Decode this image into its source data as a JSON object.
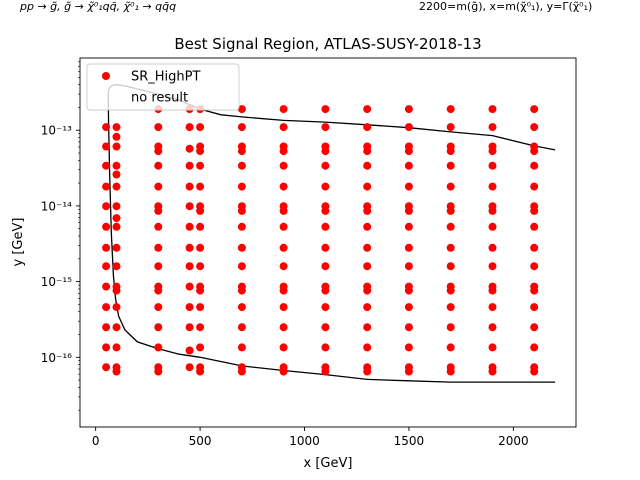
{
  "header": {
    "process_label": "pp → g̃, g̃ → χ̃⁰₁qq̄, χ̃⁰₁ → qq̄q",
    "mass_label": "2200=m(g̃), x=m(χ̃⁰₁), y=Γ(χ̃⁰₁)"
  },
  "chart_data": {
    "type": "scatter",
    "title": "Best Signal Region, ATLAS-SUSY-2018-13",
    "xlabel": "x [GeV]",
    "ylabel": "y [GeV]",
    "xlim": [
      -75,
      2300
    ],
    "ylim": [
      1.2e-17,
      9e-13
    ],
    "yscale": "log",
    "grid": false,
    "legend_placement": "top-left",
    "x_ticks": [
      0,
      500,
      1000,
      1500,
      2000
    ],
    "x_tick_labels": [
      "0",
      "500",
      "1000",
      "1500",
      "2000"
    ],
    "y_ticks": [
      1e-16,
      1e-15,
      1e-14,
      1e-13
    ],
    "y_tick_labels": [
      "10⁻¹⁶",
      "10⁻¹⁵",
      "10⁻¹⁴",
      "10⁻¹³"
    ],
    "series": [
      {
        "name": "SR_HighPT",
        "color": "#ff0000",
        "marker": "circle",
        "columns": [
          {
            "x": 50,
            "y": [
              7.4e-17,
              1.35e-16,
              2.5e-16,
              4.6e-16,
              8.6e-16,
              1.6e-15,
              2.8e-15,
              5.3e-15,
              9.9e-15,
              1.8e-14,
              3.4e-14,
              6.1e-14,
              1.1e-13
            ]
          },
          {
            "x": 100,
            "y": [
              6.5e-17,
              7.4e-17,
              1.35e-16,
              2.5e-16,
              4.6e-16,
              7.6e-16,
              8.6e-16,
              1.6e-15,
              2.8e-15,
              5.3e-15,
              6.9e-15,
              9.9e-15,
              1.8e-14,
              2.6e-14,
              3.4e-14,
              6.1e-14,
              8.2e-14,
              1.1e-13
            ]
          },
          {
            "x": 300,
            "y": [
              6.5e-17,
              7.4e-17,
              1.35e-16,
              2.5e-16,
              4.6e-16,
              7.6e-16,
              8.6e-16,
              1.6e-15,
              2.8e-15,
              5.3e-15,
              8.6e-15,
              9.9e-15,
              1.8e-14,
              3.4e-14,
              5.3e-14,
              6.1e-14,
              1.1e-13,
              1.9e-13
            ]
          },
          {
            "x": 450,
            "y": [
              7.4e-17,
              1.23e-16,
              2.5e-16,
              4.6e-16,
              8.6e-16,
              1.6e-15,
              2.8e-15,
              5.3e-15,
              9.9e-15,
              1.8e-14,
              3.4e-14,
              5.7e-14,
              1.1e-13,
              1.9e-13
            ]
          },
          {
            "x": 500,
            "y": [
              6.5e-17,
              7.4e-17,
              1.35e-16,
              2.5e-16,
              4.6e-16,
              7.6e-16,
              8.6e-16,
              1.6e-15,
              2.8e-15,
              5.3e-15,
              8.6e-15,
              9.9e-15,
              1.8e-14,
              3.4e-14,
              5.3e-14,
              6.1e-14,
              1.1e-13,
              1.9e-13
            ]
          },
          {
            "x": 700,
            "y": [
              6.5e-17,
              7.4e-17,
              1.35e-16,
              2.5e-16,
              4.6e-16,
              7.6e-16,
              8.6e-16,
              1.6e-15,
              2.8e-15,
              5.3e-15,
              8.6e-15,
              9.9e-15,
              1.8e-14,
              3.4e-14,
              5.3e-14,
              6.1e-14,
              1.1e-13,
              1.9e-13
            ]
          },
          {
            "x": 900,
            "y": [
              6.5e-17,
              7.4e-17,
              1.35e-16,
              2.5e-16,
              4.6e-16,
              7.6e-16,
              8.6e-16,
              1.6e-15,
              2.8e-15,
              5.3e-15,
              8.6e-15,
              9.9e-15,
              1.8e-14,
              3.4e-14,
              5.3e-14,
              6.1e-14,
              1.1e-13,
              1.9e-13
            ]
          },
          {
            "x": 1100,
            "y": [
              6.5e-17,
              7.4e-17,
              1.35e-16,
              2.5e-16,
              4.6e-16,
              7.6e-16,
              8.6e-16,
              1.6e-15,
              2.8e-15,
              5.3e-15,
              8.6e-15,
              9.9e-15,
              1.8e-14,
              3.4e-14,
              5.3e-14,
              6.1e-14,
              1.1e-13,
              1.9e-13
            ]
          },
          {
            "x": 1300,
            "y": [
              6.5e-17,
              7.4e-17,
              1.35e-16,
              2.5e-16,
              4.6e-16,
              7.6e-16,
              8.6e-16,
              1.6e-15,
              2.8e-15,
              5.3e-15,
              8.6e-15,
              9.9e-15,
              1.8e-14,
              3.4e-14,
              5.3e-14,
              6.1e-14,
              1.1e-13,
              1.9e-13
            ]
          },
          {
            "x": 1500,
            "y": [
              6.5e-17,
              7.4e-17,
              1.35e-16,
              2.5e-16,
              4.6e-16,
              7.6e-16,
              8.6e-16,
              1.6e-15,
              2.8e-15,
              5.3e-15,
              8.6e-15,
              9.9e-15,
              1.8e-14,
              3.4e-14,
              5.3e-14,
              6.1e-14,
              1.1e-13,
              1.9e-13
            ]
          },
          {
            "x": 1700,
            "y": [
              6.5e-17,
              7.4e-17,
              1.35e-16,
              2.5e-16,
              4.6e-16,
              7.6e-16,
              8.6e-16,
              1.6e-15,
              2.8e-15,
              5.3e-15,
              8.6e-15,
              9.9e-15,
              1.8e-14,
              3.4e-14,
              5.3e-14,
              6.1e-14,
              1.1e-13,
              1.9e-13
            ]
          },
          {
            "x": 1900,
            "y": [
              6.5e-17,
              7.4e-17,
              1.35e-16,
              2.5e-16,
              4.6e-16,
              7.6e-16,
              8.6e-16,
              1.6e-15,
              2.8e-15,
              5.3e-15,
              8.6e-15,
              9.9e-15,
              1.8e-14,
              3.4e-14,
              5.3e-14,
              6.1e-14,
              1.1e-13,
              1.9e-13
            ]
          },
          {
            "x": 2100,
            "y": [
              6.5e-17,
              7.4e-17,
              1.35e-16,
              2.5e-16,
              4.6e-16,
              7.6e-16,
              8.6e-16,
              1.6e-15,
              2.8e-15,
              5.3e-15,
              8.6e-15,
              9.9e-15,
              1.8e-14,
              3.4e-14,
              5.3e-14,
              6.1e-14,
              1.1e-13,
              1.9e-13
            ]
          }
        ]
      },
      {
        "name": "no result",
        "color": "#ffffff",
        "marker": "none",
        "columns": []
      }
    ],
    "contour": {
      "color": "#000000",
      "x": [
        2200,
        2100,
        1900,
        1700,
        1500,
        1300,
        1100,
        900,
        700,
        500,
        400,
        300,
        200,
        140,
        110,
        95,
        85,
        75,
        67,
        62,
        60,
        62,
        68,
        80,
        100,
        150,
        200,
        280,
        400,
        500,
        600,
        700,
        900,
        1100,
        1300,
        1500,
        1700,
        1900,
        2100,
        2200
      ],
      "y": [
        4.7e-17,
        4.7e-17,
        4.7e-17,
        4.7e-17,
        4.9e-17,
        5.1e-17,
        5.9e-17,
        6.7e-17,
        7.7e-17,
        1e-16,
        1.1e-16,
        1.3e-16,
        1.6e-16,
        2.3e-16,
        3.5e-16,
        6e-16,
        1.2e-15,
        4.5e-15,
        2.5e-14,
        1.2e-13,
        3e-13,
        3.4e-13,
        3.7e-13,
        3.9e-13,
        4e-13,
        3.8e-13,
        3.5e-13,
        3.1e-13,
        2.5e-13,
        1.9e-13,
        1.6e-13,
        1.5e-13,
        1.35e-13,
        1.28e-13,
        1.18e-13,
        1.08e-13,
        9.5e-14,
        8.5e-14,
        6.2e-14,
        5.5e-14
      ]
    }
  }
}
